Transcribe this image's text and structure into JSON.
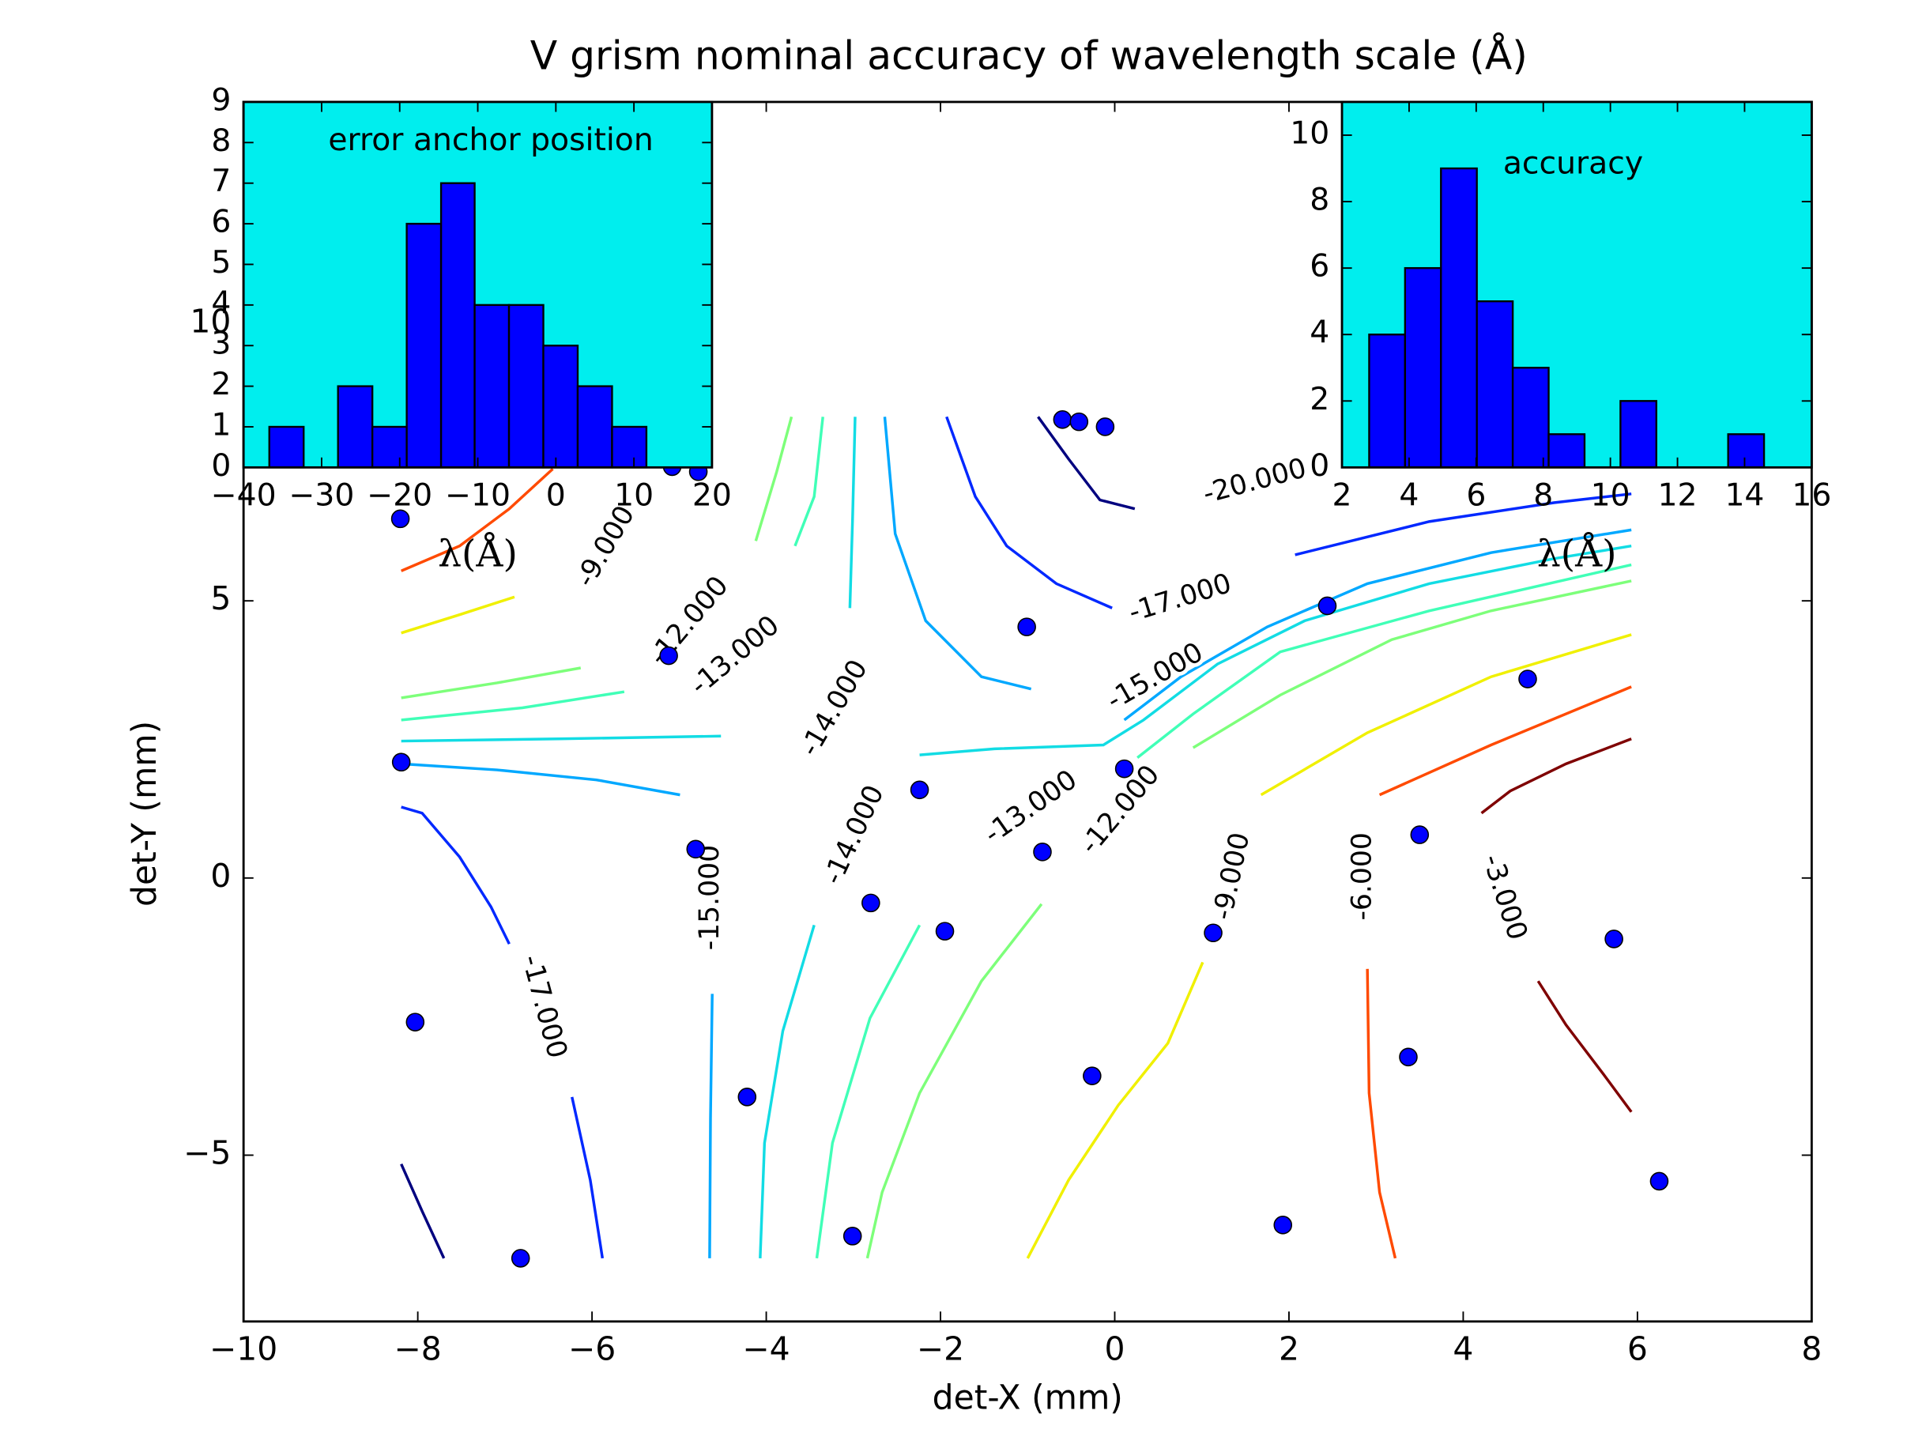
{
  "chart_data": [
    {
      "type": "scatter",
      "title": "V grism nominal accuracy of wavelength scale (Å)",
      "xlabel": "det-X (mm)",
      "ylabel": "det-Y (mm)",
      "xlim": [
        -10,
        8
      ],
      "ylim": [
        -8,
        14
      ],
      "xticks": [
        {
          "value": -10,
          "label": "−10"
        },
        {
          "value": -8,
          "label": "−8"
        },
        {
          "value": -6,
          "label": "−6"
        },
        {
          "value": -4,
          "label": "−4"
        },
        {
          "value": -2,
          "label": "−2"
        },
        0,
        2,
        4,
        6,
        8
      ],
      "yticks": [
        {
          "value": -5,
          "label": "−5"
        },
        0,
        5,
        10
      ],
      "series": [
        {
          "color": "#0000ff",
          "x": [
            -0.6,
            -0.41,
            -0.11,
            -5.08,
            -4.78,
            -8.2,
            -1.01,
            2.44,
            -5.12,
            4.74,
            -8.19,
            0.11,
            -2.24,
            -4.81,
            -0.83,
            3.5,
            -2.8,
            -1.95,
            1.13,
            5.73,
            -8.03,
            3.37,
            -0.26,
            -4.22,
            6.25,
            -3.01,
            1.93,
            -6.82
          ],
          "y": [
            8.27,
            8.23,
            8.14,
            7.42,
            7.33,
            6.48,
            4.53,
            4.91,
            4.01,
            3.59,
            2.09,
            1.97,
            1.59,
            0.52,
            0.47,
            0.78,
            -0.45,
            -0.96,
            -0.99,
            -1.1,
            -2.6,
            -3.23,
            -3.57,
            -3.95,
            -5.47,
            -6.46,
            -6.26,
            -6.86
          ]
        }
      ],
      "contours": [
        {
          "level": {
            "value": -20,
            "label": "-20.000"
          },
          "color": "#00007f",
          "segments": [
            [
              [
                -0.88,
                8.32
              ],
              [
                -0.53,
                7.56
              ],
              [
                -0.17,
                6.82
              ],
              [
                0.23,
                6.66
              ]
            ],
            [
              [
                -8.19,
                -5.16
              ],
              [
                -7.95,
                -6.01
              ],
              [
                -7.7,
                -6.86
              ]
            ]
          ]
        },
        {
          "level": {
            "value": -17,
            "label": "-17.000"
          },
          "color": "#0028ff",
          "segments": [
            [
              [
                -1.93,
                8.32
              ],
              [
                -1.6,
                6.88
              ],
              [
                -1.24,
                5.99
              ],
              [
                -0.67,
                5.31
              ],
              [
                -0.03,
                4.87
              ]
            ],
            [
              [
                2.07,
                5.83
              ],
              [
                3.61,
                6.43
              ],
              [
                5.04,
                6.77
              ],
              [
                5.93,
                6.93
              ]
            ],
            [
              [
                -8.19,
                1.28
              ],
              [
                -7.95,
                1.17
              ],
              [
                -7.52,
                0.38
              ],
              [
                -7.16,
                -0.52
              ],
              [
                -6.95,
                -1.19
              ]
            ],
            [
              [
                -6.23,
                -3.95
              ],
              [
                -6.02,
                -5.45
              ],
              [
                -5.88,
                -6.86
              ]
            ]
          ]
        },
        {
          "level": {
            "value": -15,
            "label": "-15.000"
          },
          "color": "#00a8ff",
          "segments": [
            [
              [
                -2.64,
                8.32
              ],
              [
                -2.52,
                6.21
              ],
              [
                -2.17,
                4.64
              ],
              [
                -1.53,
                3.63
              ],
              [
                -0.96,
                3.41
              ]
            ],
            [
              [
                0.11,
                2.85
              ],
              [
                0.76,
                3.63
              ],
              [
                1.75,
                4.53
              ],
              [
                2.9,
                5.31
              ],
              [
                4.32,
                5.87
              ],
              [
                5.93,
                6.28
              ]
            ],
            [
              [
                -8.19,
                2.06
              ],
              [
                -7.09,
                1.95
              ],
              [
                -5.95,
                1.77
              ],
              [
                -4.99,
                1.5
              ]
            ],
            [
              [
                -4.62,
                -2.09
              ],
              [
                -4.64,
                -4.33
              ],
              [
                -4.65,
                -6.86
              ]
            ]
          ]
        },
        {
          "level": {
            "value": -14,
            "label": "-14.000"
          },
          "color": "#12dce4",
          "segments": [
            [
              [
                -2.98,
                8.32
              ],
              [
                -3.01,
                6.43
              ],
              [
                -3.04,
                4.87
              ]
            ],
            [
              [
                -8.19,
                2.47
              ],
              [
                -6.38,
                2.51
              ],
              [
                -4.52,
                2.56
              ]
            ],
            [
              [
                -2.24,
                2.22
              ],
              [
                -1.38,
                2.33
              ],
              [
                -0.13,
                2.4
              ],
              [
                0.33,
                2.85
              ],
              [
                1.18,
                3.86
              ],
              [
                2.18,
                4.64
              ],
              [
                3.61,
                5.31
              ],
              [
                5.04,
                5.76
              ],
              [
                5.93,
                5.99
              ]
            ],
            [
              [
                -3.45,
                -0.85
              ],
              [
                -3.81,
                -2.76
              ],
              [
                -4.02,
                -4.78
              ],
              [
                -4.07,
                -6.86
              ]
            ]
          ]
        },
        {
          "level": {
            "value": -13,
            "label": "-13.000"
          },
          "color": "#40ffb7",
          "segments": [
            [
              [
                -3.35,
                8.32
              ],
              [
                -3.45,
                6.88
              ],
              [
                -3.67,
                5.99
              ]
            ],
            [
              [
                -8.19,
                2.85
              ],
              [
                -6.8,
                3.07
              ],
              [
                -5.63,
                3.36
              ]
            ],
            [
              [
                0.26,
                2.17
              ],
              [
                0.9,
                2.96
              ],
              [
                1.9,
                4.08
              ],
              [
                3.61,
                4.82
              ],
              [
                5.93,
                5.65
              ]
            ],
            [
              [
                -2.24,
                -0.85
              ],
              [
                -2.81,
                -2.53
              ],
              [
                -3.24,
                -4.78
              ],
              [
                -3.42,
                -6.86
              ]
            ]
          ]
        },
        {
          "level": {
            "value": -12,
            "label": "-12.000"
          },
          "color": "#7dff7a",
          "segments": [
            [
              [
                -3.71,
                8.32
              ],
              [
                -3.88,
                7.33
              ],
              [
                -4.12,
                6.08
              ]
            ],
            [
              [
                -8.19,
                3.25
              ],
              [
                -7.09,
                3.52
              ],
              [
                -6.13,
                3.79
              ]
            ],
            [
              [
                0.9,
                2.35
              ],
              [
                1.9,
                3.3
              ],
              [
                3.18,
                4.3
              ],
              [
                4.32,
                4.82
              ],
              [
                5.93,
                5.36
              ]
            ],
            [
              [
                -0.84,
                -0.47
              ],
              [
                -1.53,
                -1.86
              ],
              [
                -2.24,
                -3.88
              ],
              [
                -2.67,
                -5.67
              ],
              [
                -2.84,
                -6.86
              ]
            ]
          ]
        },
        {
          "level": {
            "value": -9,
            "label": "-9.000"
          },
          "color": "#f0f000",
          "segments": [
            [
              [
                -8.19,
                4.42
              ],
              [
                -7.52,
                4.75
              ],
              [
                -6.89,
                5.07
              ]
            ],
            [
              [
                1.68,
                1.5
              ],
              [
                2.9,
                2.62
              ],
              [
                4.32,
                3.63
              ],
              [
                5.93,
                4.39
              ]
            ],
            [
              [
                1.01,
                -1.52
              ],
              [
                0.61,
                -2.98
              ],
              [
                0.04,
                -4.1
              ],
              [
                -0.53,
                -5.45
              ],
              [
                -1.0,
                -6.86
              ]
            ]
          ]
        },
        {
          "level": {
            "value": -6,
            "label": "-6.000"
          },
          "color": "#ff4a00",
          "segments": [
            [
              [
                -8.19,
                5.54
              ],
              [
                -7.52,
                5.99
              ],
              [
                -6.95,
                6.66
              ],
              [
                -6.45,
                7.38
              ]
            ],
            [
              [
                3.04,
                1.5
              ],
              [
                4.32,
                2.4
              ],
              [
                5.93,
                3.45
              ]
            ],
            [
              [
                2.9,
                -1.64
              ],
              [
                2.92,
                -3.88
              ],
              [
                3.04,
                -5.67
              ],
              [
                3.22,
                -6.86
              ]
            ]
          ]
        },
        {
          "level": {
            "value": -3,
            "label": "-3.000"
          },
          "color": "#7f0000",
          "segments": [
            [
              [
                4.21,
                1.17
              ],
              [
                4.54,
                1.57
              ],
              [
                5.18,
                2.06
              ],
              [
                5.93,
                2.51
              ]
            ],
            [
              [
                4.86,
                -1.86
              ],
              [
                5.18,
                -2.65
              ],
              [
                5.61,
                -3.54
              ],
              [
                5.93,
                -4.22
              ]
            ]
          ]
        }
      ]
    },
    {
      "type": "hist",
      "title": "error anchor position",
      "xlabel": "λ(Å)",
      "bins": [
        -36.7,
        -32.3,
        -27.9,
        -23.5,
        -19.1,
        -14.7,
        -10.4,
        -6.0,
        -1.6,
        2.8,
        7.2,
        11.6
      ],
      "counts": [
        1,
        0,
        2,
        1,
        6,
        7,
        4,
        4,
        3,
        2,
        1
      ],
      "color": "#0000ff",
      "background": "#00eeee",
      "xlim": [
        -40,
        20
      ],
      "ylim": [
        0,
        9
      ],
      "xticks": [
        {
          "value": -40,
          "label": "−40"
        },
        {
          "value": -30,
          "label": "−30"
        },
        {
          "value": -20,
          "label": "−20"
        },
        {
          "value": -10,
          "label": "−10"
        },
        0,
        10,
        20
      ],
      "yticks": [
        0,
        1,
        2,
        3,
        4,
        5,
        6,
        7,
        8,
        9
      ]
    },
    {
      "type": "hist",
      "title": "accuracy",
      "xlabel": "λ(Å)",
      "bins": [
        2.81,
        3.88,
        4.95,
        6.02,
        7.09,
        8.16,
        9.23,
        10.3,
        11.37,
        12.44,
        13.51,
        14.58
      ],
      "counts": [
        4,
        6,
        9,
        5,
        3,
        1,
        0,
        2,
        0,
        0,
        1
      ],
      "color": "#0000ff",
      "background": "#00eeee",
      "xlim": [
        2,
        16
      ],
      "ylim": [
        0,
        11
      ],
      "xticks": [
        2,
        4,
        6,
        8,
        10,
        12,
        14,
        16
      ],
      "yticks": [
        0,
        2,
        4,
        6,
        8,
        10
      ]
    }
  ]
}
